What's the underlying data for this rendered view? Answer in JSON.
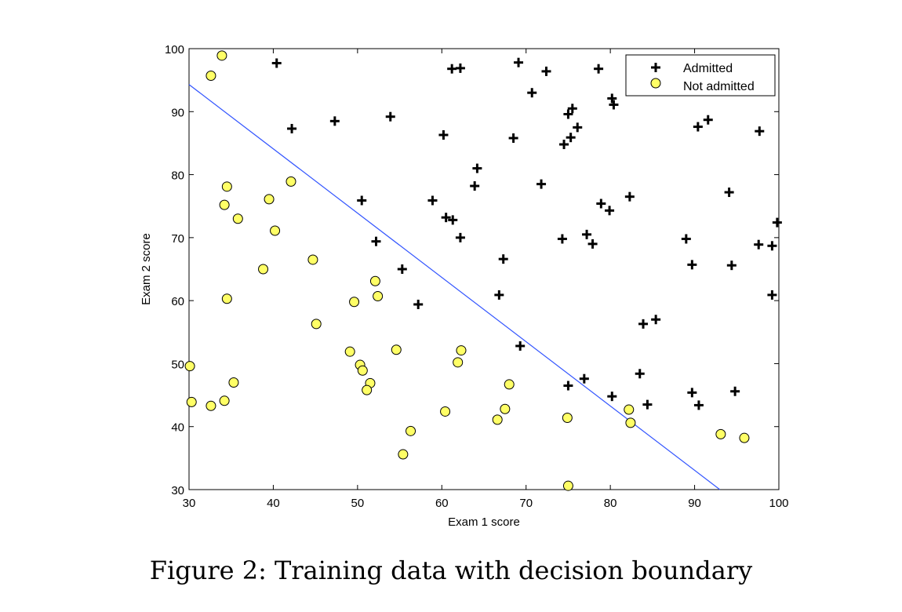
{
  "caption": "Figure 2: Training data with decision boundary",
  "colors": {
    "not_admitted_fill": "#ffff66",
    "marker_edge": "#000000",
    "boundary": "#3355ff"
  },
  "chart_data": {
    "type": "scatter",
    "title": "",
    "xlabel": "Exam 1 score",
    "ylabel": "Exam 2 score",
    "xlim": [
      30,
      100
    ],
    "ylim": [
      30,
      100
    ],
    "xticks": [
      30,
      40,
      50,
      60,
      70,
      80,
      90,
      100
    ],
    "yticks": [
      30,
      40,
      50,
      60,
      70,
      80,
      90,
      100
    ],
    "legend": {
      "position": "top-right",
      "entries": [
        "Admitted",
        "Not admitted"
      ]
    },
    "series": [
      {
        "name": "Admitted",
        "marker": "plus",
        "points": [
          [
            40.4,
            97.7
          ],
          [
            61.2,
            96.8
          ],
          [
            62.2,
            96.9
          ],
          [
            69.1,
            97.8
          ],
          [
            72.4,
            96.4
          ],
          [
            78.6,
            96.8
          ],
          [
            70.7,
            93.0
          ],
          [
            80.2,
            92.1
          ],
          [
            80.4,
            91.1
          ],
          [
            75.0,
            89.6
          ],
          [
            75.5,
            90.5
          ],
          [
            42.2,
            87.3
          ],
          [
            47.3,
            88.5
          ],
          [
            53.9,
            89.2
          ],
          [
            60.2,
            86.3
          ],
          [
            68.5,
            85.8
          ],
          [
            75.3,
            85.9
          ],
          [
            74.5,
            84.8
          ],
          [
            76.1,
            87.5
          ],
          [
            90.4,
            87.6
          ],
          [
            91.6,
            88.7
          ],
          [
            97.7,
            86.9
          ],
          [
            64.2,
            81.0
          ],
          [
            63.9,
            78.2
          ],
          [
            71.8,
            78.5
          ],
          [
            82.3,
            76.5
          ],
          [
            94.1,
            77.2
          ],
          [
            50.5,
            75.9
          ],
          [
            58.9,
            75.9
          ],
          [
            60.5,
            73.2
          ],
          [
            61.3,
            72.8
          ],
          [
            78.9,
            75.4
          ],
          [
            79.9,
            74.3
          ],
          [
            99.8,
            72.4
          ],
          [
            62.2,
            70.0
          ],
          [
            52.2,
            69.4
          ],
          [
            77.2,
            70.5
          ],
          [
            77.9,
            69.0
          ],
          [
            74.3,
            69.8
          ],
          [
            89.0,
            69.8
          ],
          [
            97.6,
            68.9
          ],
          [
            99.2,
            68.7
          ],
          [
            67.3,
            66.6
          ],
          [
            89.7,
            65.7
          ],
          [
            94.4,
            65.6
          ],
          [
            55.3,
            65.0
          ],
          [
            66.8,
            60.9
          ],
          [
            99.2,
            60.9
          ],
          [
            57.2,
            59.4
          ],
          [
            83.9,
            56.3
          ],
          [
            85.4,
            57.0
          ],
          [
            69.3,
            52.8
          ],
          [
            83.5,
            48.4
          ],
          [
            76.9,
            47.6
          ],
          [
            75.0,
            46.5
          ],
          [
            89.7,
            45.4
          ],
          [
            94.8,
            45.6
          ],
          [
            80.2,
            44.8
          ],
          [
            84.4,
            43.5
          ],
          [
            90.5,
            43.4
          ]
        ]
      },
      {
        "name": "Not admitted",
        "marker": "circle",
        "points": [
          [
            33.9,
            98.9
          ],
          [
            32.6,
            95.7
          ],
          [
            34.5,
            78.1
          ],
          [
            34.2,
            75.2
          ],
          [
            35.8,
            73.0
          ],
          [
            42.1,
            78.9
          ],
          [
            39.5,
            76.1
          ],
          [
            40.2,
            71.1
          ],
          [
            44.7,
            66.5
          ],
          [
            38.8,
            65.0
          ],
          [
            34.5,
            60.3
          ],
          [
            52.1,
            63.1
          ],
          [
            52.4,
            60.7
          ],
          [
            49.6,
            59.8
          ],
          [
            45.1,
            56.3
          ],
          [
            49.1,
            51.9
          ],
          [
            50.3,
            49.8
          ],
          [
            50.6,
            48.9
          ],
          [
            51.5,
            46.9
          ],
          [
            51.1,
            45.8
          ],
          [
            54.6,
            52.2
          ],
          [
            61.9,
            50.2
          ],
          [
            62.3,
            52.1
          ],
          [
            68.0,
            46.7
          ],
          [
            30.1,
            49.6
          ],
          [
            30.3,
            43.9
          ],
          [
            32.6,
            43.3
          ],
          [
            34.2,
            44.1
          ],
          [
            35.3,
            47.0
          ],
          [
            60.4,
            42.4
          ],
          [
            67.5,
            42.8
          ],
          [
            66.6,
            41.1
          ],
          [
            74.9,
            41.4
          ],
          [
            56.3,
            39.3
          ],
          [
            55.4,
            35.6
          ],
          [
            75.0,
            30.6
          ],
          [
            82.2,
            42.7
          ],
          [
            82.4,
            40.6
          ],
          [
            93.1,
            38.8
          ],
          [
            95.9,
            38.2
          ]
        ]
      },
      {
        "name": "Decision boundary",
        "type": "line",
        "points": [
          [
            30,
            94.3
          ],
          [
            93.0,
            30.0
          ]
        ]
      }
    ]
  }
}
